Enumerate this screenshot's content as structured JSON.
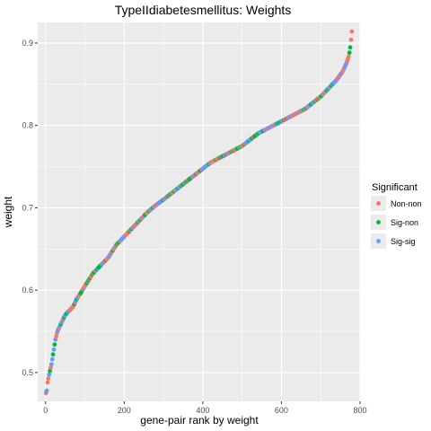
{
  "chart_data": {
    "type": "scatter",
    "title": "TypeIIdiabetesmellitus: Weights",
    "xlabel": "gene-pair rank by weight",
    "ylabel": "weight",
    "xlim": [
      -20,
      800
    ],
    "ylim": [
      0.465,
      0.925
    ],
    "xticks": [
      "0",
      "200",
      "400",
      "600",
      "800"
    ],
    "xtick_values": [
      0,
      200,
      400,
      600,
      800
    ],
    "yticks": [
      "0.5",
      "0.6",
      "0.7",
      "0.8",
      "0.9"
    ],
    "ytick_values": [
      0.5,
      0.6,
      0.7,
      0.8,
      0.9
    ],
    "grid": true,
    "legend": {
      "title": "Significant",
      "position": "right",
      "entries": [
        "Non-non",
        "Sig-non",
        "Sig-sig"
      ]
    },
    "colors": {
      "Non-non": "#f8766d",
      "Sig-non": "#00ba38",
      "Sig-sig": "#619cff",
      "panel": "#ebebeb",
      "grid": "#ffffff"
    },
    "curve": {
      "n_points": 780,
      "x": [
        1,
        3,
        5,
        10,
        15,
        20,
        25,
        30,
        40,
        50,
        60,
        70,
        80,
        90,
        100,
        120,
        140,
        160,
        180,
        200,
        220,
        240,
        260,
        280,
        300,
        340,
        380,
        420,
        460,
        500,
        540,
        580,
        620,
        660,
        700,
        720,
        740,
        755,
        765,
        772,
        776,
        778,
        780
      ],
      "y": [
        0.475,
        0.478,
        0.488,
        0.5,
        0.51,
        0.525,
        0.54,
        0.55,
        0.56,
        0.57,
        0.575,
        0.58,
        0.59,
        0.597,
        0.605,
        0.62,
        0.63,
        0.64,
        0.655,
        0.665,
        0.675,
        0.685,
        0.695,
        0.703,
        0.71,
        0.725,
        0.74,
        0.755,
        0.765,
        0.775,
        0.79,
        0.8,
        0.81,
        0.82,
        0.835,
        0.845,
        0.855,
        0.865,
        0.875,
        0.885,
        0.898,
        0.91,
        0.918
      ]
    }
  }
}
